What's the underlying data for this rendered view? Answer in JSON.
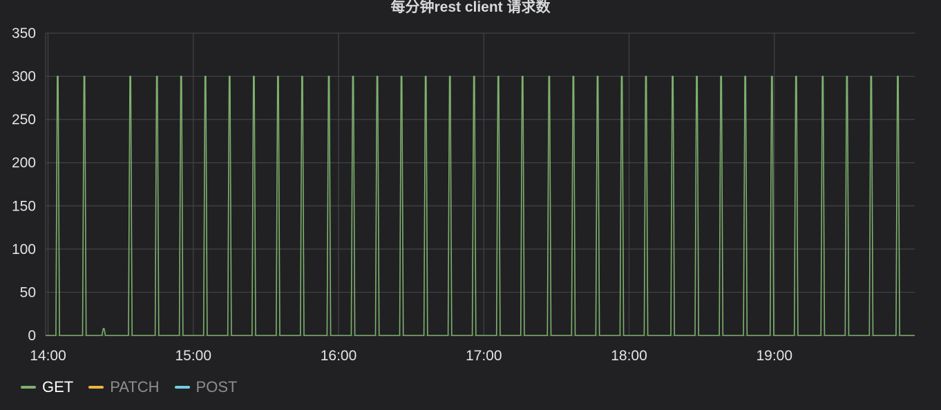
{
  "chart_data": {
    "type": "line",
    "title": "每分钟rest client 请求数",
    "xlabel": "",
    "ylabel": "",
    "x_range": [
      "13:59",
      "19:58"
    ],
    "ylim": [
      0,
      350
    ],
    "y_ticks": [
      0,
      50,
      100,
      150,
      200,
      250,
      300,
      350
    ],
    "x_ticks": [
      "14:00",
      "15:00",
      "16:00",
      "17:00",
      "18:00",
      "19:00"
    ],
    "grid": true,
    "legend_position": "bottom-left",
    "series": [
      {
        "name": "GET",
        "color": "#7eb26d",
        "baseline": 0,
        "spike_peak": 300,
        "spike_times": [
          "14:04",
          "14:15",
          "14:34",
          "14:45",
          "14:55",
          "15:05",
          "15:15",
          "15:25",
          "15:35",
          "15:45",
          "15:56",
          "16:06",
          "16:16",
          "16:26",
          "16:36",
          "16:46",
          "16:56",
          "17:06",
          "17:16",
          "17:27",
          "17:37",
          "17:47",
          "17:57",
          "18:07",
          "18:18",
          "18:28",
          "18:38",
          "18:48",
          "18:59",
          "19:09",
          "19:20",
          "19:30",
          "19:40",
          "19:51"
        ],
        "small_bumps": [
          {
            "time": "14:23",
            "value": 8
          }
        ]
      },
      {
        "name": "PATCH",
        "color": "#eab839",
        "values": []
      },
      {
        "name": "POST",
        "color": "#6ed0e0",
        "values": []
      }
    ]
  }
}
